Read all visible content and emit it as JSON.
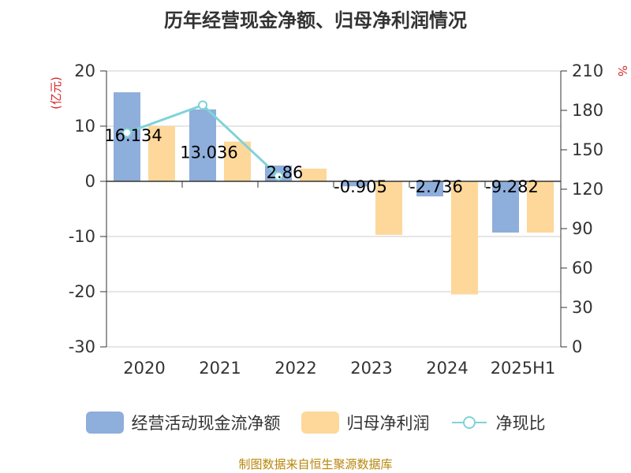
{
  "title": "历年经营现金净额、归母净利润情况",
  "source": "制图数据来自恒生聚源数据库",
  "colors": {
    "cash_flow": "#8eaedb",
    "net_profit": "#fdd89a",
    "ratio": "#7fd3d8",
    "unit_label": "#d62728",
    "grid": "#cccccc",
    "axis": "#333333",
    "text": "#333333"
  },
  "chart_data": {
    "type": "bar",
    "title": "历年经营现金净额、归母净利润情况",
    "categories": [
      "2020",
      "2021",
      "2022",
      "2023",
      "2024",
      "2025H1"
    ],
    "series": [
      {
        "name": "经营活动现金流净额",
        "type": "bar",
        "axis": "left",
        "values": [
          16.134,
          13.036,
          2.86,
          -0.905,
          -2.736,
          -9.282
        ],
        "labels": [
          "16.134",
          "13.036",
          "2.86",
          "-0.905",
          "-2.736",
          "-9.282"
        ]
      },
      {
        "name": "归母净利润",
        "type": "bar",
        "axis": "left",
        "values": [
          10.0,
          7.2,
          2.3,
          -9.7,
          -20.5,
          -9.3
        ]
      },
      {
        "name": "净现比",
        "type": "line",
        "axis": "right",
        "values": [
          163,
          184,
          130,
          null,
          null,
          null
        ]
      }
    ],
    "y_left": {
      "label": "(亿元)",
      "min": -30,
      "max": 20,
      "ticks": [
        20,
        10,
        0,
        -10,
        -20,
        -30
      ],
      "tick_labels": [
        "20",
        "10",
        "0",
        "-10",
        "-20",
        "-30"
      ]
    },
    "y_right": {
      "label": "%",
      "min": 0,
      "max": 210,
      "ticks": [
        210,
        180,
        150,
        120,
        90,
        60,
        30,
        0
      ],
      "tick_labels": [
        "210",
        "180",
        "150",
        "120",
        "90",
        "60",
        "30",
        "0"
      ]
    },
    "grid": true,
    "legend_position": "bottom"
  }
}
